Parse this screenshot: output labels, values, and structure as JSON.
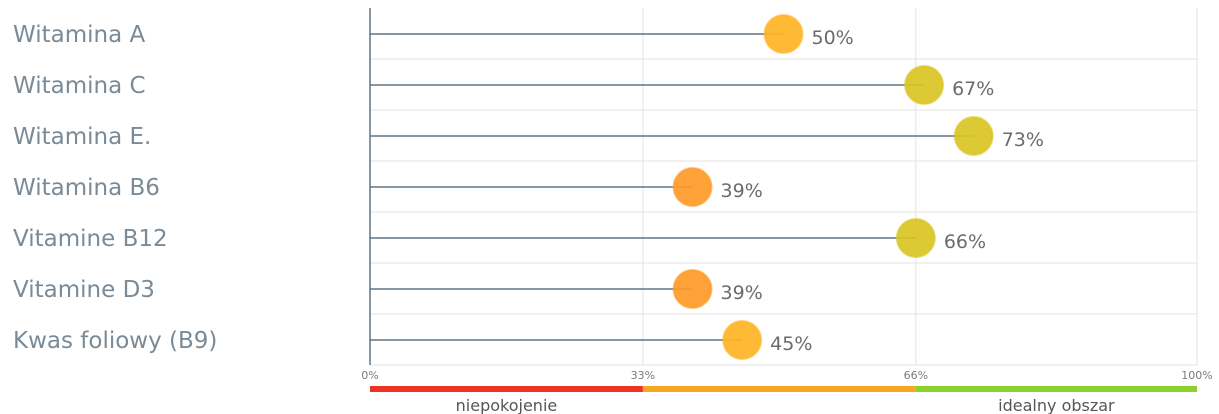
{
  "chart_data": {
    "type": "lollipop",
    "categories": [
      "Witamina A",
      "Witamina C",
      "Witamina E.",
      "Witamina B6",
      "Vitamine B12",
      "Vitamine D3",
      "Kwas foliowy (B9)"
    ],
    "values": [
      50,
      67,
      73,
      39,
      66,
      39,
      45
    ],
    "value_labels": [
      "50%",
      "67%",
      "73%",
      "39%",
      "66%",
      "39%",
      "45%"
    ],
    "xlim": [
      0,
      100
    ],
    "xticks": [
      0,
      33,
      66,
      100
    ],
    "xtick_labels": [
      "0%",
      "33%",
      "66%",
      "100%"
    ],
    "grid": true,
    "zones": [
      {
        "from": 0,
        "to": 33,
        "color": "#ee3325"
      },
      {
        "from": 33,
        "to": 66,
        "color": "#f5a623"
      },
      {
        "from": 66,
        "to": 100,
        "color": "#8bd12b"
      }
    ],
    "zone_labels": [
      {
        "text": "niepokojenie",
        "at": 16.5
      },
      {
        "text": "idealny obszar",
        "at": 83
      }
    ],
    "colors": {
      "line": "#5f7585",
      "grid": "#e3e3e3",
      "low": "#ff9a26",
      "mid": "#ffb424",
      "high": "#d9c423"
    }
  }
}
